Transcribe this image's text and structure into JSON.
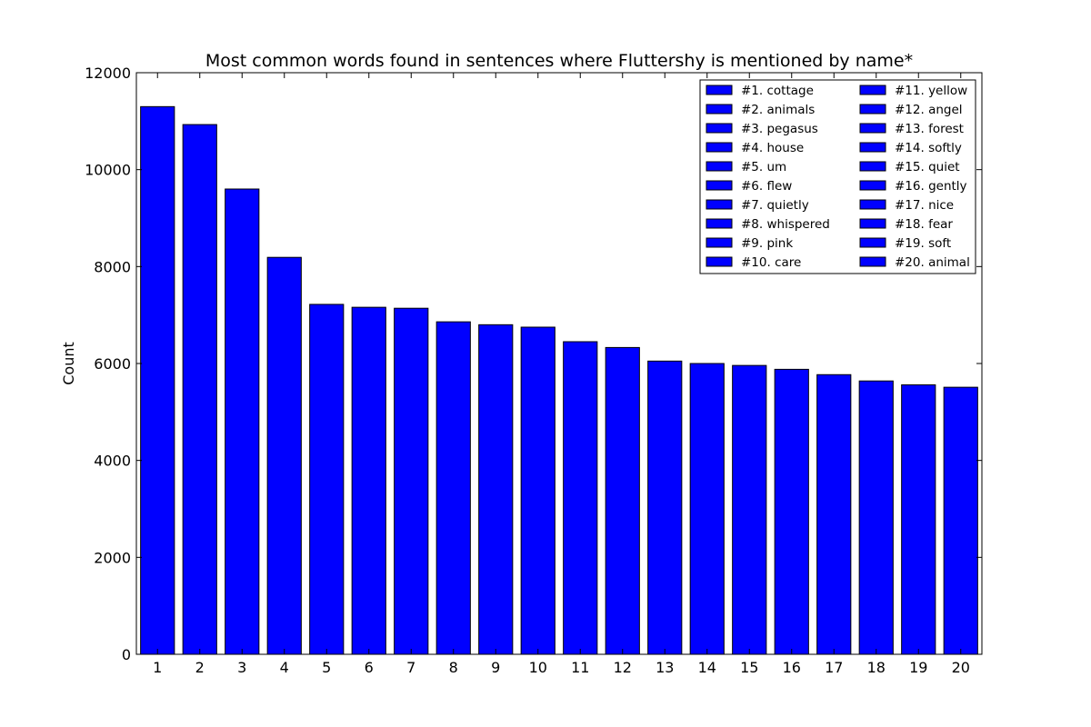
{
  "chart_data": {
    "type": "bar",
    "title": "Most common words found in sentences where Fluttershy is mentioned by name*",
    "xlabel": "",
    "ylabel": "Count",
    "ylim": [
      0,
      12000
    ],
    "yticks": [
      0,
      2000,
      4000,
      6000,
      8000,
      10000,
      12000
    ],
    "categories": [
      "1",
      "2",
      "3",
      "4",
      "5",
      "6",
      "7",
      "8",
      "9",
      "10",
      "11",
      "12",
      "13",
      "14",
      "15",
      "16",
      "17",
      "18",
      "19",
      "20"
    ],
    "series": [
      {
        "values": [
          11300,
          10930,
          9600,
          8190,
          7220,
          7160,
          7140,
          6860,
          6800,
          6750,
          6450,
          6330,
          6050,
          6000,
          5960,
          5880,
          5770,
          5640,
          5560,
          5510
        ],
        "color": "#0000ff"
      }
    ],
    "legend": {
      "placement": "top-right",
      "columns": 2,
      "entries": [
        "#1. cottage",
        "#2. animals",
        "#3. pegasus",
        "#4. house",
        "#5. um",
        "#6. flew",
        "#7. quietly",
        "#8. whispered",
        "#9. pink",
        "#10. care",
        "#11. yellow",
        "#12. angel",
        "#13. forest",
        "#14. softly",
        "#15. quiet",
        "#16. gently",
        "#17. nice",
        "#18. fear",
        "#19. soft",
        "#20. animal"
      ]
    },
    "grid": false
  }
}
